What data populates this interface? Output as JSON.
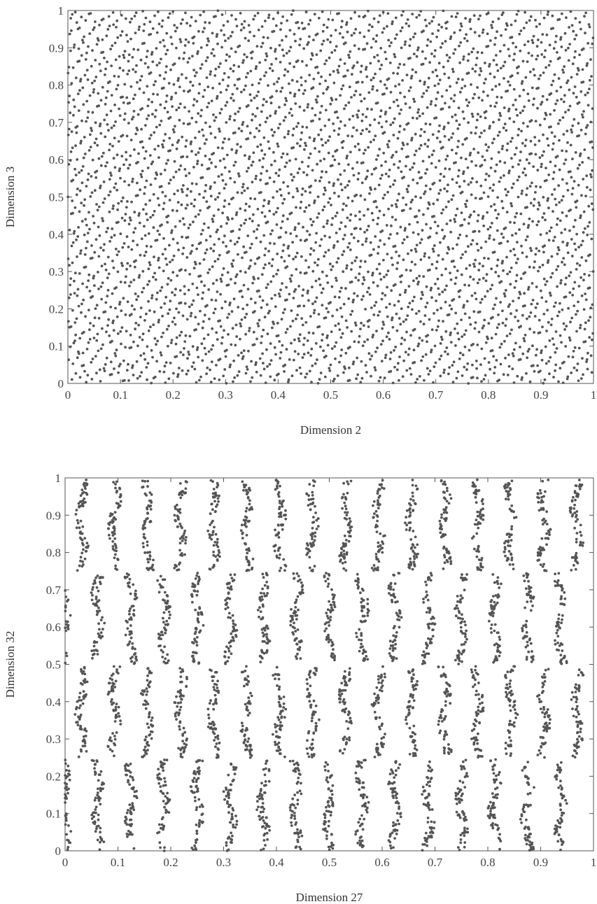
{
  "chart_data": [
    {
      "type": "scatter",
      "title": "",
      "xlabel": "Dimension 2",
      "ylabel": "Dimension 3",
      "xlim": [
        0,
        1
      ],
      "ylim": [
        0,
        1
      ],
      "xticks": [
        "0",
        "0.1",
        "0.2",
        "0.3",
        "0.4",
        "0.5",
        "0.6",
        "0.7",
        "0.8",
        "0.9",
        "1"
      ],
      "yticks": [
        "0",
        "0.1",
        "0.2",
        "0.3",
        "0.4",
        "0.5",
        "0.6",
        "0.7",
        "0.8",
        "0.9",
        "1"
      ],
      "grid": false,
      "legend": "none",
      "point_color": "#555555",
      "description_of_points": "approximately 4000 points uniformly covering the unit square (low-discrepancy sequence, dimensions 2 and 3)"
    },
    {
      "type": "scatter",
      "title": "",
      "xlabel": "Dimension 27",
      "ylabel": "Dimension 32",
      "xlim": [
        0,
        1
      ],
      "ylim": [
        0,
        1
      ],
      "xticks": [
        "0",
        "0.1",
        "0.2",
        "0.3",
        "0.4",
        "0.5",
        "0.6",
        "0.7",
        "0.8",
        "0.9",
        "1"
      ],
      "yticks": [
        "0",
        "0.1",
        "0.2",
        "0.3",
        "0.4",
        "0.5",
        "0.6",
        "0.7",
        "0.8",
        "0.9",
        "1"
      ],
      "grid": false,
      "legend": "none",
      "point_color": "#555555",
      "description_of_points": "points concentrated in narrow vertical stripes within four horizontal bands (0-0.25, 0.25-0.5, 0.5-0.75, 0.75-1), revealing correlation between dimensions 27 and 32"
    }
  ]
}
